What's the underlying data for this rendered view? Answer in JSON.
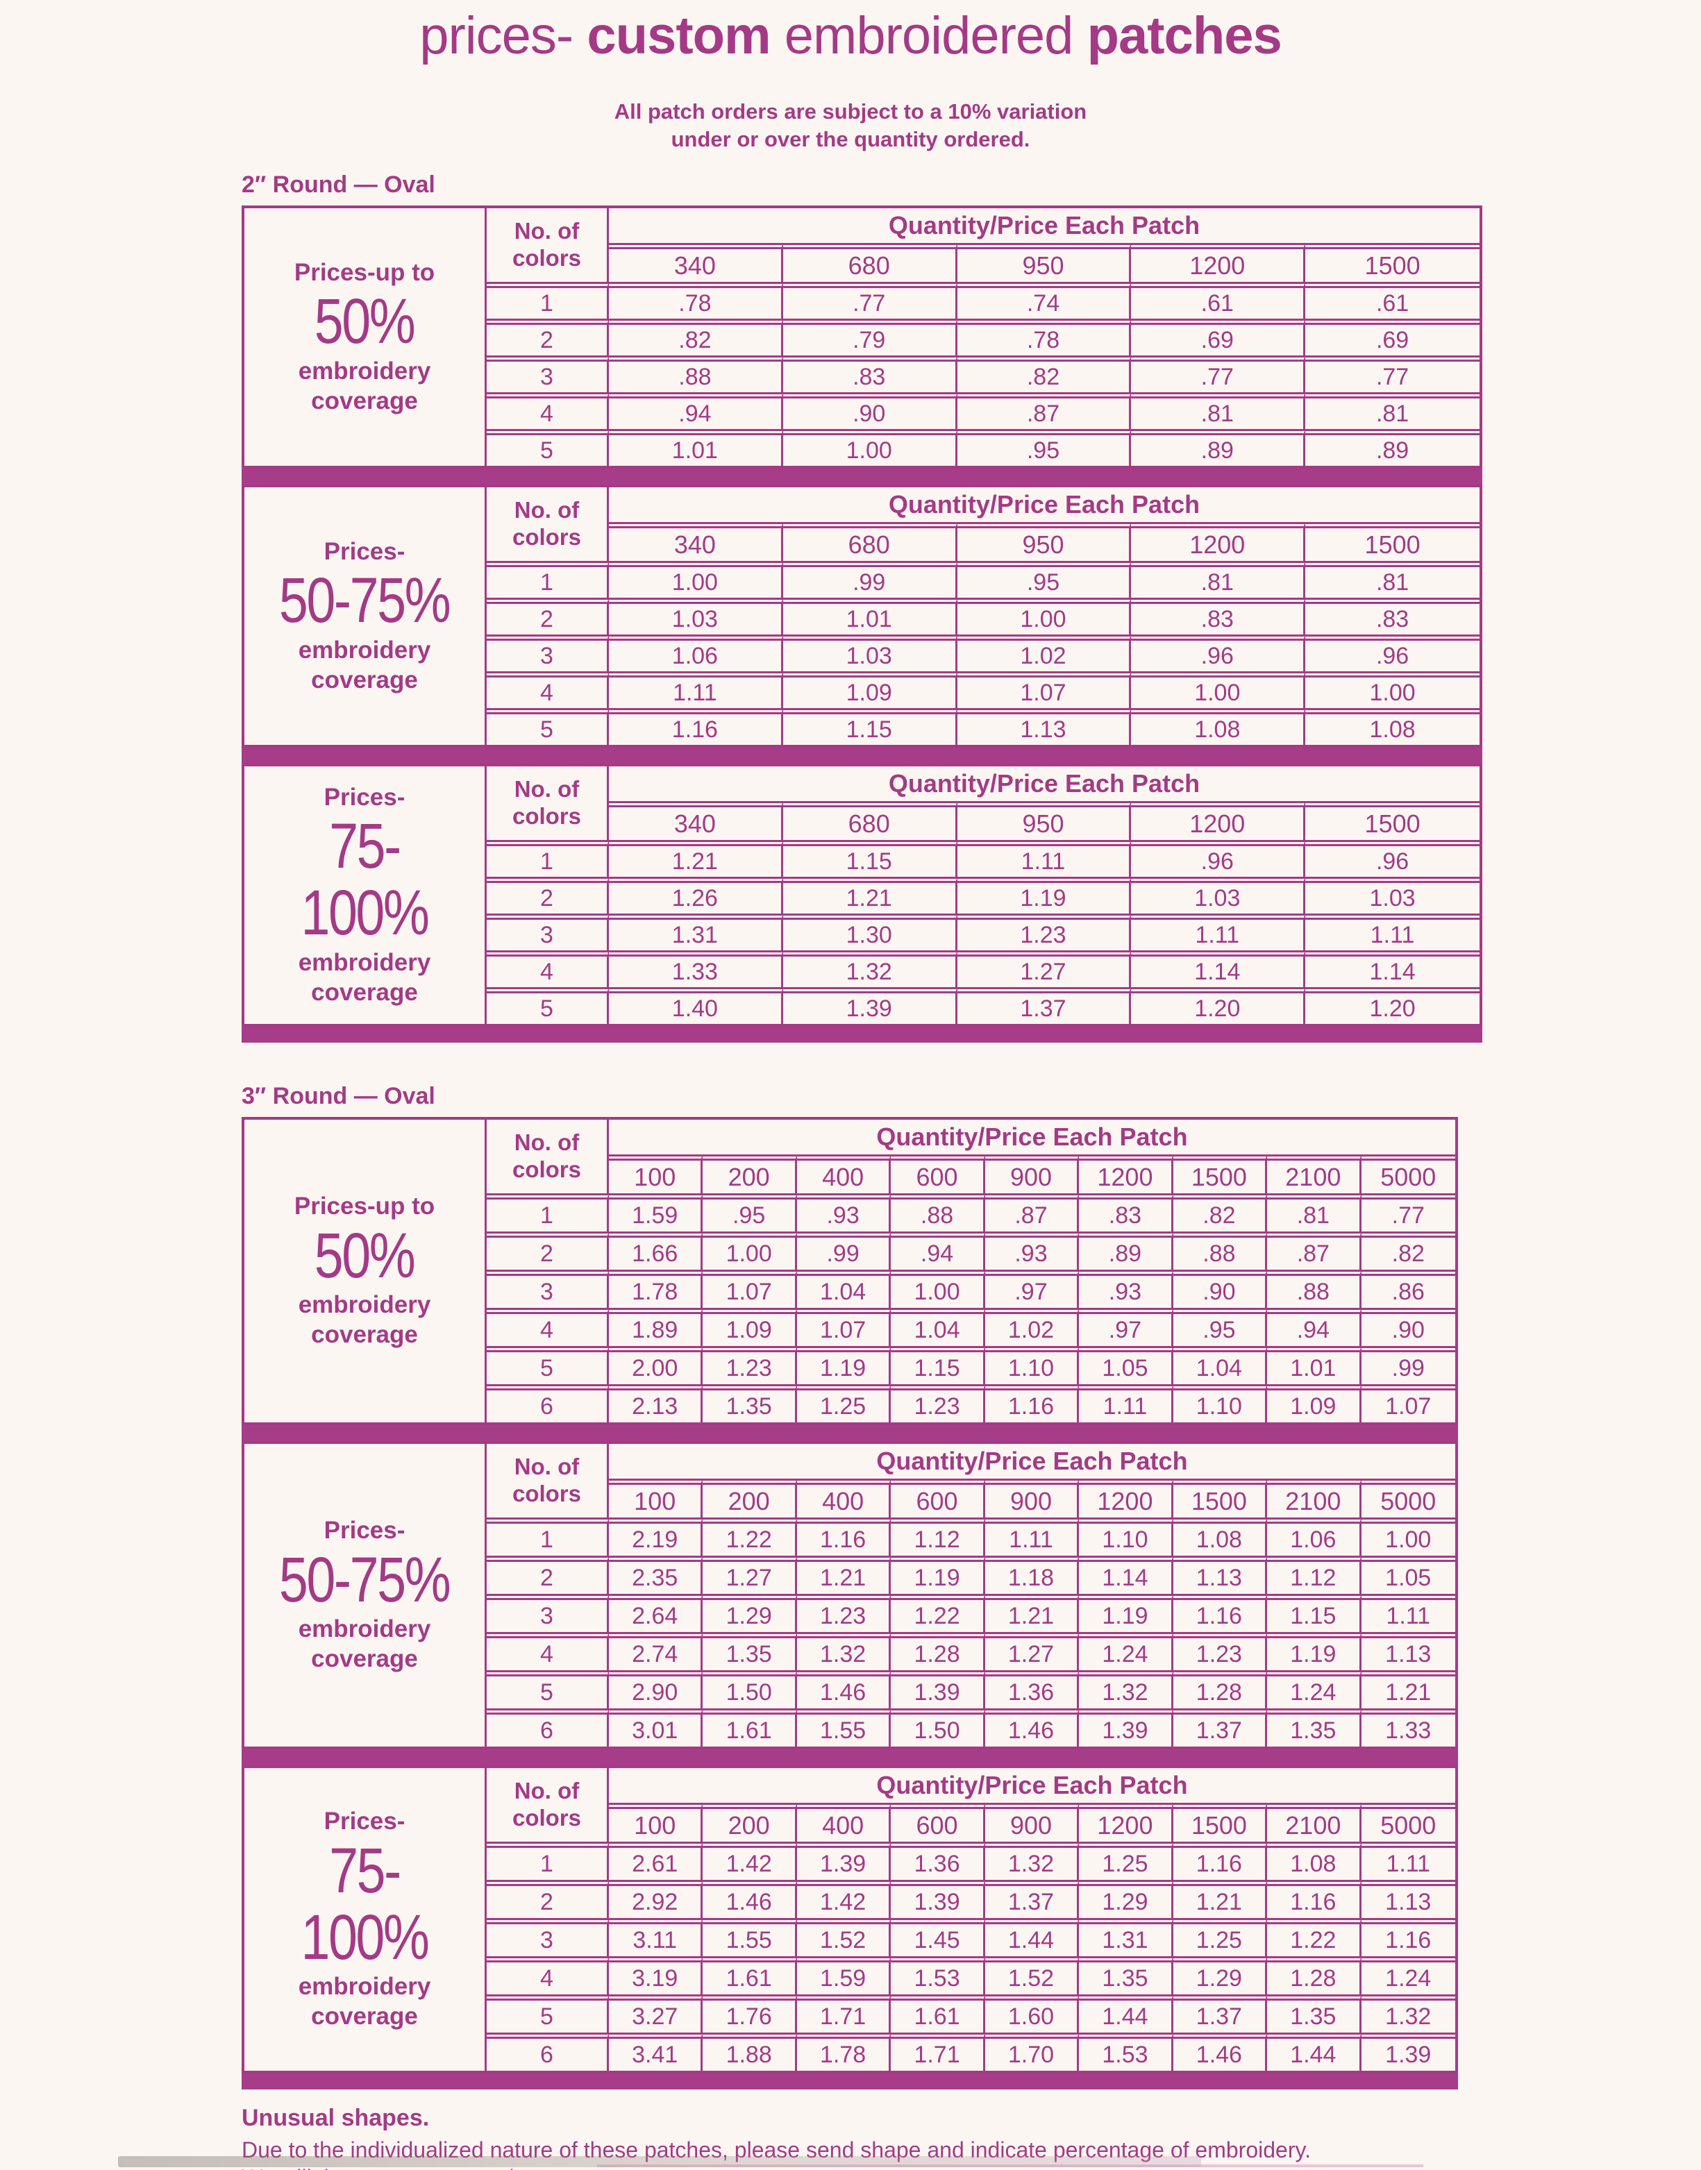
{
  "page": {
    "title": {
      "part1": "prices-",
      "part2": "custom",
      "part3": "embroidered",
      "part4": "patches"
    },
    "subtitle_line1": "All patch orders are subject to a 10% variation",
    "subtitle_line2": "under or over the quantity ordered.",
    "footer_heading": "Unusual shapes.",
    "footer_body": "Due to the individualized nature of these patches, please send shape and indicate percentage of embroidery. We will then quote you a price."
  },
  "colors": {
    "magenta_text": "#A43A86",
    "separator_bar": "#A73C89",
    "background": "#FBF6F2"
  },
  "sections": [
    {
      "label": "2″ Round — Oval",
      "colors_header_line1": "No. of",
      "colors_header_line2": "colors",
      "qty_header": "Quantity/Price Each Patch",
      "quantities": [
        "340",
        "680",
        "950",
        "1200",
        "1500"
      ],
      "blocks": [
        {
          "coverage_label": [
            "Prices-up to",
            "50%",
            "embroidery",
            "coverage"
          ],
          "rows": [
            {
              "colors": "1",
              "prices": [
                ".78",
                ".77",
                ".74",
                ".61",
                ".61"
              ]
            },
            {
              "colors": "2",
              "prices": [
                ".82",
                ".79",
                ".78",
                ".69",
                ".69"
              ]
            },
            {
              "colors": "3",
              "prices": [
                ".88",
                ".83",
                ".82",
                ".77",
                ".77"
              ]
            },
            {
              "colors": "4",
              "prices": [
                ".94",
                ".90",
                ".87",
                ".81",
                ".81"
              ]
            },
            {
              "colors": "5",
              "prices": [
                "1.01",
                "1.00",
                ".95",
                ".89",
                ".89"
              ]
            }
          ]
        },
        {
          "coverage_label": [
            "Prices-",
            "50-75%",
            "embroidery",
            "coverage"
          ],
          "rows": [
            {
              "colors": "1",
              "prices": [
                "1.00",
                ".99",
                ".95",
                ".81",
                ".81"
              ]
            },
            {
              "colors": "2",
              "prices": [
                "1.03",
                "1.01",
                "1.00",
                ".83",
                ".83"
              ]
            },
            {
              "colors": "3",
              "prices": [
                "1.06",
                "1.03",
                "1.02",
                ".96",
                ".96"
              ]
            },
            {
              "colors": "4",
              "prices": [
                "1.11",
                "1.09",
                "1.07",
                "1.00",
                "1.00"
              ]
            },
            {
              "colors": "5",
              "prices": [
                "1.16",
                "1.15",
                "1.13",
                "1.08",
                "1.08"
              ]
            }
          ]
        },
        {
          "coverage_label": [
            "Prices-",
            "75-100%",
            "embroidery",
            "coverage"
          ],
          "rows": [
            {
              "colors": "1",
              "prices": [
                "1.21",
                "1.15",
                "1.11",
                ".96",
                ".96"
              ]
            },
            {
              "colors": "2",
              "prices": [
                "1.26",
                "1.21",
                "1.19",
                "1.03",
                "1.03"
              ]
            },
            {
              "colors": "3",
              "prices": [
                "1.31",
                "1.30",
                "1.23",
                "1.11",
                "1.11"
              ]
            },
            {
              "colors": "4",
              "prices": [
                "1.33",
                "1.32",
                "1.27",
                "1.14",
                "1.14"
              ]
            },
            {
              "colors": "5",
              "prices": [
                "1.40",
                "1.39",
                "1.37",
                "1.20",
                "1.20"
              ]
            }
          ]
        }
      ]
    },
    {
      "label": "3″ Round — Oval",
      "colors_header_line1": "No. of",
      "colors_header_line2": "colors",
      "qty_header": "Quantity/Price Each Patch",
      "quantities": [
        "100",
        "200",
        "400",
        "600",
        "900",
        "1200",
        "1500",
        "2100",
        "5000"
      ],
      "blocks": [
        {
          "coverage_label": [
            "Prices-up to",
            "50%",
            "embroidery",
            "coverage"
          ],
          "rows": [
            {
              "colors": "1",
              "prices": [
                "1.59",
                ".95",
                ".93",
                ".88",
                ".87",
                ".83",
                ".82",
                ".81",
                ".77"
              ]
            },
            {
              "colors": "2",
              "prices": [
                "1.66",
                "1.00",
                ".99",
                ".94",
                ".93",
                ".89",
                ".88",
                ".87",
                ".82"
              ]
            },
            {
              "colors": "3",
              "prices": [
                "1.78",
                "1.07",
                "1.04",
                "1.00",
                ".97",
                ".93",
                ".90",
                ".88",
                ".86"
              ]
            },
            {
              "colors": "4",
              "prices": [
                "1.89",
                "1.09",
                "1.07",
                "1.04",
                "1.02",
                ".97",
                ".95",
                ".94",
                ".90"
              ]
            },
            {
              "colors": "5",
              "prices": [
                "2.00",
                "1.23",
                "1.19",
                "1.15",
                "1.10",
                "1.05",
                "1.04",
                "1.01",
                ".99"
              ]
            },
            {
              "colors": "6",
              "prices": [
                "2.13",
                "1.35",
                "1.25",
                "1.23",
                "1.16",
                "1.11",
                "1.10",
                "1.09",
                "1.07"
              ]
            }
          ]
        },
        {
          "coverage_label": [
            "Prices-",
            "50-75%",
            "embroidery",
            "coverage"
          ],
          "rows": [
            {
              "colors": "1",
              "prices": [
                "2.19",
                "1.22",
                "1.16",
                "1.12",
                "1.11",
                "1.10",
                "1.08",
                "1.06",
                "1.00"
              ]
            },
            {
              "colors": "2",
              "prices": [
                "2.35",
                "1.27",
                "1.21",
                "1.19",
                "1.18",
                "1.14",
                "1.13",
                "1.12",
                "1.05"
              ]
            },
            {
              "colors": "3",
              "prices": [
                "2.64",
                "1.29",
                "1.23",
                "1.22",
                "1.21",
                "1.19",
                "1.16",
                "1.15",
                "1.11"
              ]
            },
            {
              "colors": "4",
              "prices": [
                "2.74",
                "1.35",
                "1.32",
                "1.28",
                "1.27",
                "1.24",
                "1.23",
                "1.19",
                "1.13"
              ]
            },
            {
              "colors": "5",
              "prices": [
                "2.90",
                "1.50",
                "1.46",
                "1.39",
                "1.36",
                "1.32",
                "1.28",
                "1.24",
                "1.21"
              ]
            },
            {
              "colors": "6",
              "prices": [
                "3.01",
                "1.61",
                "1.55",
                "1.50",
                "1.46",
                "1.39",
                "1.37",
                "1.35",
                "1.33"
              ]
            }
          ]
        },
        {
          "coverage_label": [
            "Prices-",
            "75-100%",
            "embroidery",
            "coverage"
          ],
          "rows": [
            {
              "colors": "1",
              "prices": [
                "2.61",
                "1.42",
                "1.39",
                "1.36",
                "1.32",
                "1.25",
                "1.16",
                "1.08",
                "1.11"
              ]
            },
            {
              "colors": "2",
              "prices": [
                "2.92",
                "1.46",
                "1.42",
                "1.39",
                "1.37",
                "1.29",
                "1.21",
                "1.16",
                "1.13"
              ]
            },
            {
              "colors": "3",
              "prices": [
                "3.11",
                "1.55",
                "1.52",
                "1.45",
                "1.44",
                "1.31",
                "1.25",
                "1.22",
                "1.16"
              ]
            },
            {
              "colors": "4",
              "prices": [
                "3.19",
                "1.61",
                "1.59",
                "1.53",
                "1.52",
                "1.35",
                "1.29",
                "1.28",
                "1.24"
              ]
            },
            {
              "colors": "5",
              "prices": [
                "3.27",
                "1.76",
                "1.71",
                "1.61",
                "1.60",
                "1.44",
                "1.37",
                "1.35",
                "1.32"
              ]
            },
            {
              "colors": "6",
              "prices": [
                "3.41",
                "1.88",
                "1.78",
                "1.71",
                "1.70",
                "1.53",
                "1.46",
                "1.44",
                "1.39"
              ]
            }
          ]
        }
      ]
    }
  ]
}
